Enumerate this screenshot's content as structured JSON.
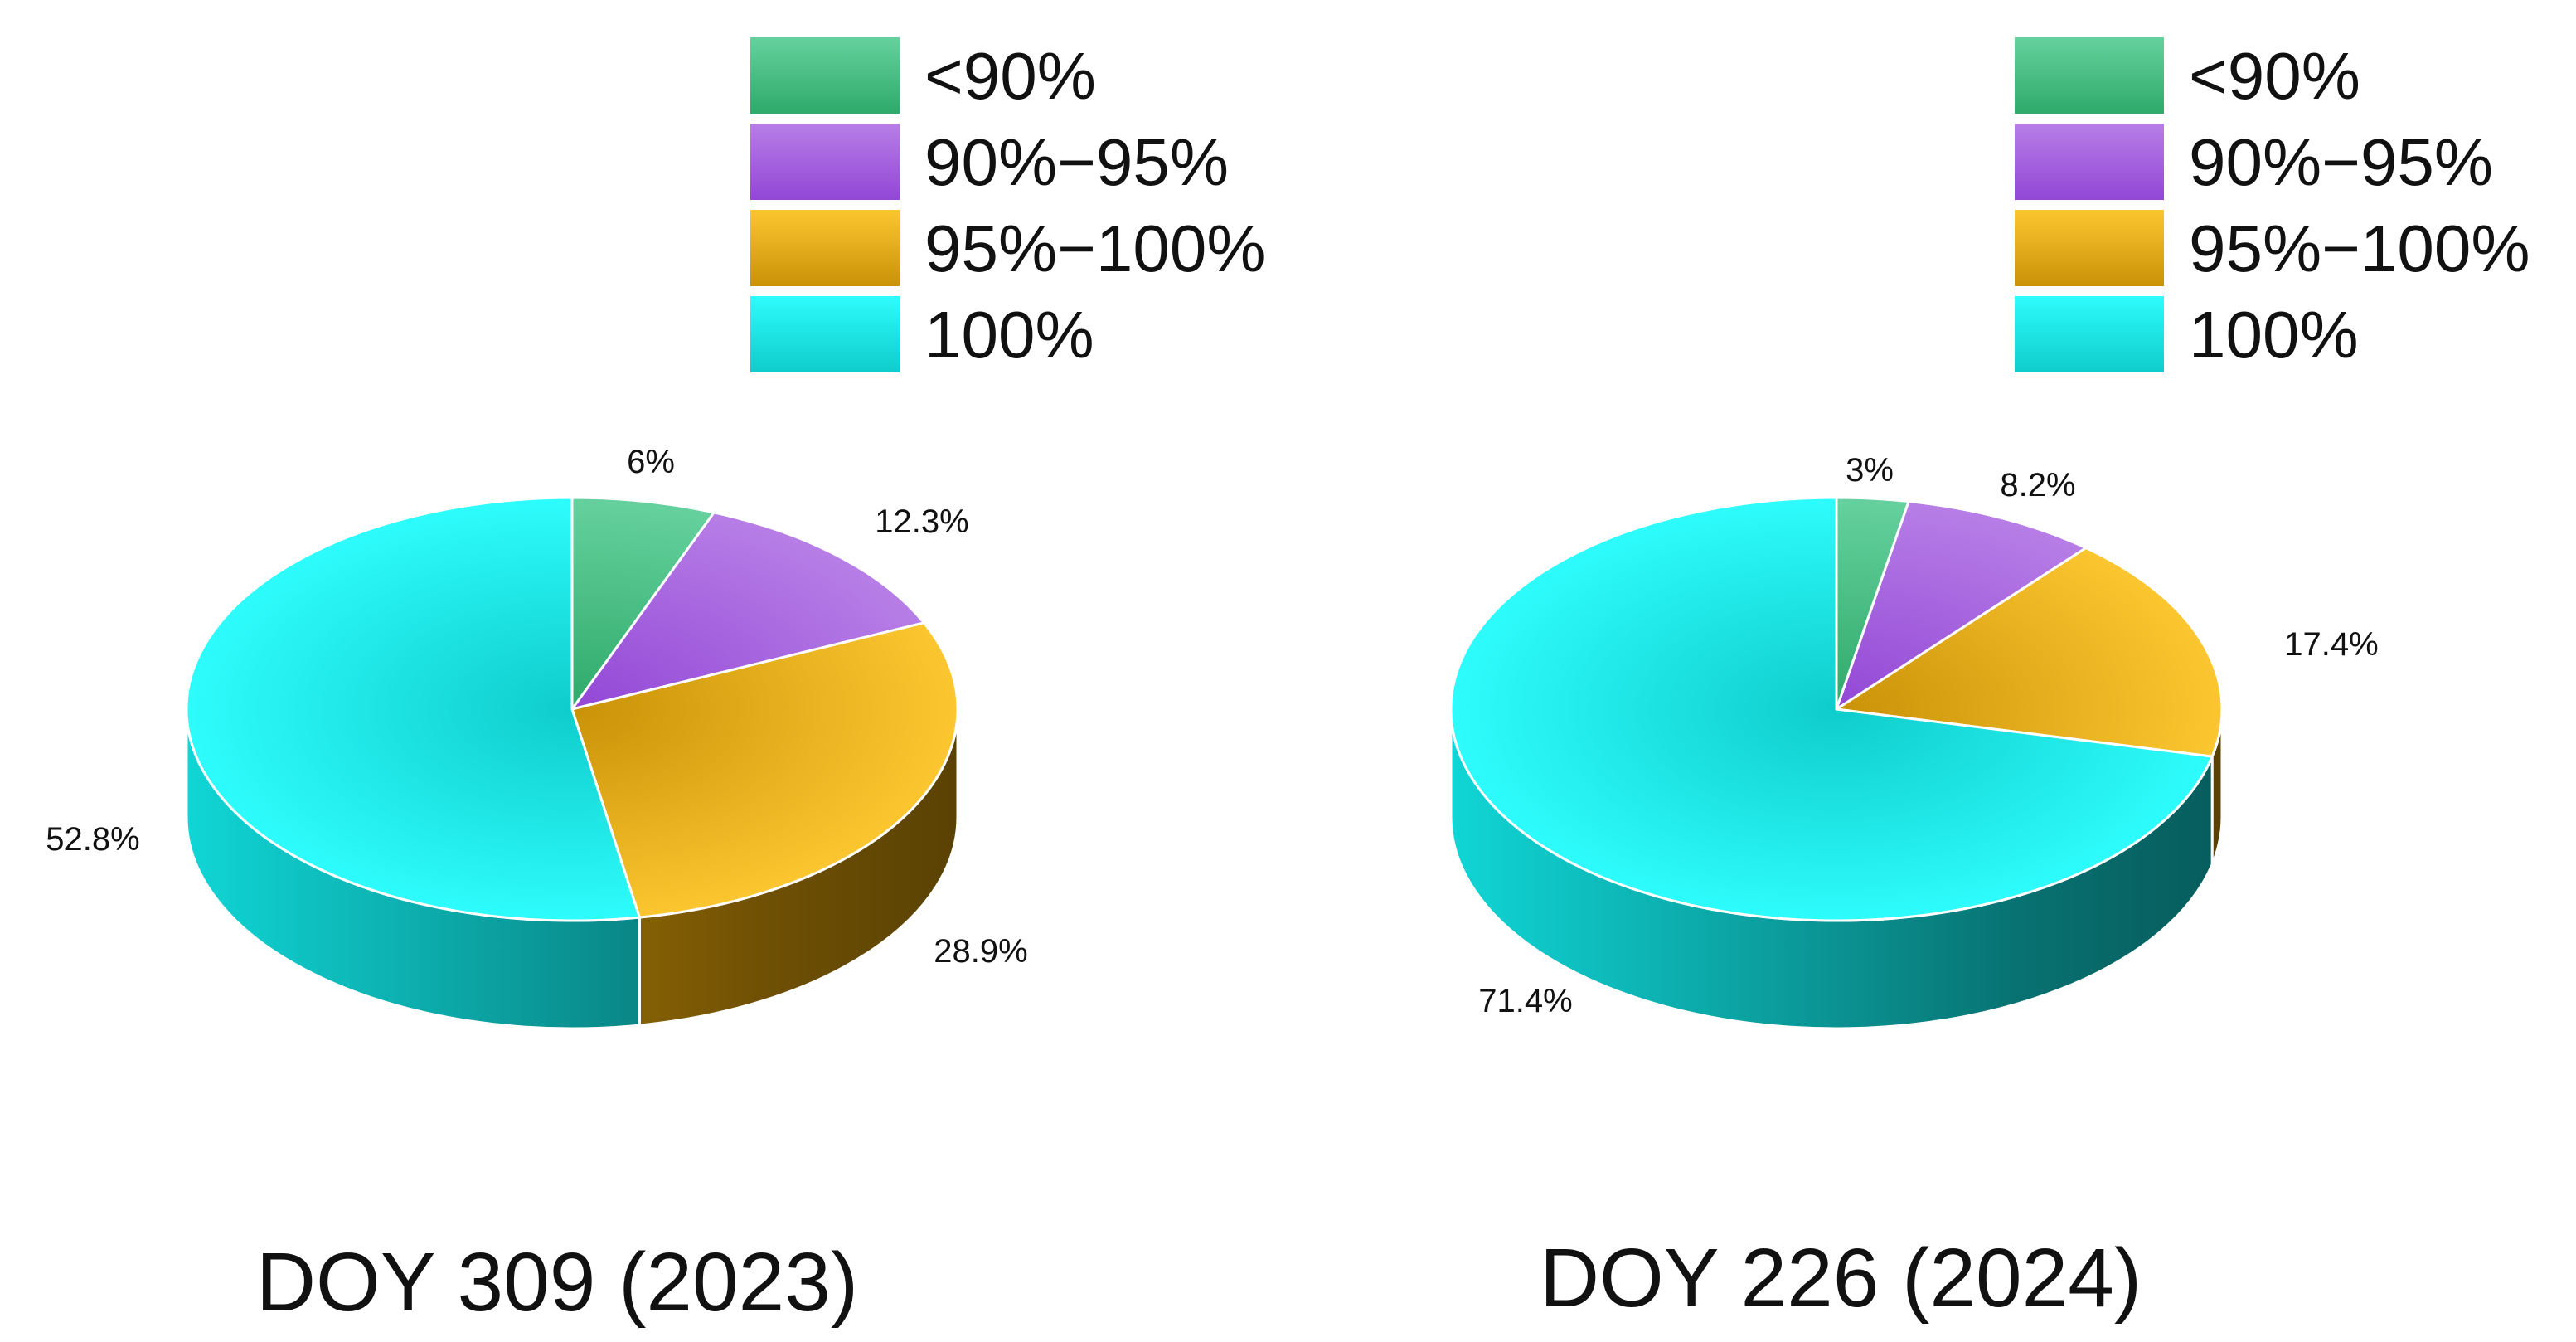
{
  "colors": {
    "lt90": {
      "light": "#66d19e",
      "dark": "#2eaa6a"
    },
    "p90_95": {
      "light": "#b77ee6",
      "dark": "#9247d6"
    },
    "p95_100": {
      "light": "#fcc630",
      "dark": "#c99208"
    },
    "p100": {
      "light": "#2efcfc",
      "dark": "#0fcccc"
    }
  },
  "chart_data": [
    {
      "type": "pie",
      "title": "DOY 309 (2023)",
      "legend": [
        "<90%",
        "90%−95%",
        "95%−100%",
        "100%"
      ],
      "legend_position": "top-right",
      "slices": [
        {
          "label": "<90%",
          "value": 6,
          "value_label": "6%"
        },
        {
          "label": "90%−95%",
          "value": 12.3,
          "value_label": "12.3%"
        },
        {
          "label": "95%−100%",
          "value": 28.9,
          "value_label": "28.9%"
        },
        {
          "label": "100%",
          "value": 52.8,
          "value_label": "52.8%"
        }
      ]
    },
    {
      "type": "pie",
      "title": "DOY 226 (2024)",
      "legend": [
        "<90%",
        "90%−95%",
        "95%−100%",
        "100%"
      ],
      "legend_position": "top-right",
      "slices": [
        {
          "label": "<90%",
          "value": 3,
          "value_label": "3%"
        },
        {
          "label": "90%−95%",
          "value": 8.2,
          "value_label": "8.2%"
        },
        {
          "label": "95%−100%",
          "value": 17.4,
          "value_label": "17.4%"
        },
        {
          "label": "100%",
          "value": 71.4,
          "value_label": "71.4%"
        }
      ]
    }
  ]
}
